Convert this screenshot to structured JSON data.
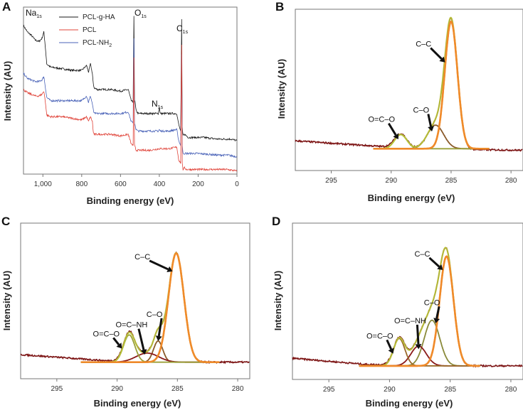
{
  "figure": {
    "colors": {
      "PCL-g-HA": "#1a1a1a",
      "PCL": "#e0443a",
      "PCL-NH2": "#4a63b8",
      "raw": "#7d1515",
      "envelope": "#b8c43a",
      "C-C": "#f08a2a",
      "C-O": "#8a5a2a",
      "C-O_D": "#8a8a3a",
      "O=C-O": "#9aa03a",
      "O=C-O_D": "#9a6a2a",
      "O=C-NH": "#8a1a1a",
      "arrow": "#111111"
    }
  },
  "chart_data": [
    {
      "panel": "A",
      "type": "line",
      "title": "",
      "xlabel": "Binding energy (eV)",
      "ylabel": "Intensity (AU)",
      "xlim": [
        1100,
        0
      ],
      "ylim": [
        0,
        100
      ],
      "x_ticks": [
        1000,
        800,
        600,
        400,
        200,
        0
      ],
      "x_tick_labels": [
        "1,000",
        "800",
        "600",
        "400",
        "200",
        "0"
      ],
      "legend": {
        "placement": "top-left",
        "entries": [
          "PCL-g-HA",
          "PCL",
          "PCL-NH2"
        ],
        "entry_labels": [
          "PCL-g-HA",
          "PCL",
          "PCL-NH"
        ],
        "entry_subscripts": [
          "",
          "",
          "2"
        ]
      },
      "peak_labels": [
        {
          "main": "Na",
          "sub": "1s",
          "x": 1071
        },
        {
          "main": "O",
          "sub": "1s",
          "x": 531
        },
        {
          "main": "N",
          "sub": "1s",
          "x": 400
        },
        {
          "main": "C",
          "sub": "1s",
          "x": 285
        }
      ],
      "series": [
        {
          "name": "PCL-g-HA",
          "x": [
            1100,
            1080,
            1060,
            1040,
            1020,
            1005,
            995,
            990,
            980,
            960,
            900,
            850,
            800,
            775,
            765,
            755,
            745,
            740,
            735,
            720,
            650,
            600,
            560,
            545,
            535,
            531,
            528,
            525,
            520,
            510,
            450,
            405,
            400,
            395,
            350,
            310,
            300,
            290,
            285,
            282,
            278,
            270,
            260,
            250,
            200,
            170,
            100,
            50,
            30,
            0
          ],
          "y": [
            92,
            88,
            86,
            83,
            82,
            84,
            88,
            82,
            68,
            66,
            65,
            64,
            64,
            67,
            63,
            68,
            62,
            55,
            53,
            52,
            52,
            51,
            52,
            45,
            44,
            98,
            46,
            44,
            39,
            37,
            37,
            37,
            41,
            37,
            37,
            37,
            30,
            26,
            96,
            28,
            23,
            24,
            23,
            22,
            22,
            22,
            21,
            21,
            21,
            20
          ]
        },
        {
          "name": "PCL-NH2",
          "x": [
            1100,
            1080,
            1060,
            1040,
            1020,
            1005,
            995,
            990,
            980,
            960,
            900,
            850,
            800,
            775,
            765,
            755,
            745,
            740,
            735,
            720,
            650,
            600,
            560,
            545,
            535,
            531,
            528,
            525,
            520,
            510,
            450,
            405,
            400,
            395,
            350,
            310,
            300,
            290,
            285,
            282,
            278,
            270,
            260,
            250,
            200,
            100,
            50,
            0
          ],
          "y": [
            62,
            59,
            58,
            57,
            57,
            58,
            60,
            56,
            47,
            45,
            45,
            45,
            45,
            48,
            44,
            48,
            43,
            39,
            37,
            37,
            37,
            37,
            38,
            32,
            31,
            84,
            31,
            30,
            27,
            26,
            26,
            26,
            27,
            26,
            26,
            27,
            20,
            17,
            74,
            17,
            12,
            12,
            12,
            12,
            12,
            11,
            11,
            10
          ]
        },
        {
          "name": "PCL",
          "x": [
            1100,
            1080,
            1060,
            1040,
            1020,
            1005,
            995,
            990,
            980,
            960,
            900,
            850,
            800,
            775,
            765,
            755,
            745,
            740,
            735,
            720,
            650,
            600,
            560,
            545,
            535,
            531,
            528,
            525,
            520,
            510,
            450,
            400,
            350,
            310,
            300,
            290,
            285,
            282,
            278,
            270,
            260,
            250,
            200,
            100,
            50,
            0
          ],
          "y": [
            52,
            50,
            49,
            48,
            48,
            49,
            51,
            47,
            36,
            35,
            35,
            34,
            33,
            35,
            32,
            35,
            32,
            25,
            24,
            24,
            24,
            23,
            24,
            18,
            17,
            72,
            17,
            16,
            14,
            14,
            14,
            15,
            15,
            16,
            8,
            6,
            80,
            6,
            2,
            3,
            2,
            2,
            2,
            2,
            2,
            1
          ]
        }
      ]
    },
    {
      "panel": "B",
      "type": "line",
      "title": "",
      "xlabel": "Binding energy (eV)",
      "ylabel": "Intensity (AU)",
      "xlim": [
        298,
        279
      ],
      "ylim": [
        0,
        100
      ],
      "x_ticks": [
        295,
        290,
        285,
        280
      ],
      "x_tick_labels": [
        "295",
        "290",
        "285",
        "280"
      ],
      "baseline": 13,
      "raw_baseline": [
        [
          298,
          18
        ],
        [
          290,
          14
        ],
        [
          288,
          13
        ],
        [
          279,
          12
        ]
      ],
      "components": [
        {
          "name": "C-C",
          "center": 285.0,
          "height": 81,
          "fwhm": 1.25,
          "color_key": "C-C",
          "label": "C–C"
        },
        {
          "name": "C-O",
          "center": 286.3,
          "height": 15,
          "fwhm": 1.6,
          "color_key": "C-O",
          "label": "C–O"
        },
        {
          "name": "O=C-O",
          "center": 289.2,
          "height": 9,
          "fwhm": 1.2,
          "color_key": "O=C-O",
          "label": "O=C–O"
        }
      ],
      "fit_range": [
        291.5,
        281.8
      ],
      "annotations": [
        {
          "label": "C–C",
          "text_x": 287.3,
          "text_y": 78,
          "arrow_to": [
            285.5,
            68
          ]
        },
        {
          "label": "C–O",
          "text_x": 287.5,
          "text_y": 36,
          "arrow_to": [
            286.6,
            24
          ]
        },
        {
          "label": "O=C–O",
          "text_x": 290.8,
          "text_y": 30,
          "arrow_to": [
            289.4,
            19
          ]
        }
      ]
    },
    {
      "panel": "C",
      "type": "line",
      "title": "",
      "xlabel": "Binding energy (eV)",
      "ylabel": "Intensity (AU)",
      "xlim": [
        298,
        279
      ],
      "ylim": [
        0,
        100
      ],
      "x_ticks": [
        295,
        290,
        285,
        280
      ],
      "x_tick_labels": [
        "295",
        "290",
        "285",
        "280"
      ],
      "baseline": 10,
      "raw_baseline": [
        [
          298,
          15
        ],
        [
          291,
          11
        ],
        [
          286,
          10
        ],
        [
          279,
          10
        ]
      ],
      "components": [
        {
          "name": "C-C",
          "center": 285.1,
          "height": 72,
          "fwhm": 1.5,
          "color_key": "C-C",
          "label": "C–C"
        },
        {
          "name": "C-O",
          "center": 286.6,
          "height": 14,
          "fwhm": 0.9,
          "color_key": "C-O",
          "label": "C–O"
        },
        {
          "name": "O=C-NH",
          "center": 287.5,
          "height": 6,
          "fwhm": 2.2,
          "color_key": "O=C-NH",
          "label": "O=C–NH"
        },
        {
          "name": "O=C-O",
          "center": 289.0,
          "height": 18,
          "fwhm": 1.1,
          "color_key": "O=C-O",
          "label": "O=C–O"
        }
      ],
      "fit_range": [
        293,
        281.5
      ],
      "annotations": [
        {
          "label": "C–C",
          "text_x": 287.9,
          "text_y": 78,
          "arrow_to": [
            285.4,
            70
          ]
        },
        {
          "label": "O=C–NH",
          "text_x": 288.8,
          "text_y": 33,
          "arrow_to": [
            287.7,
            15
          ]
        },
        {
          "label": "C–O",
          "text_x": 286.9,
          "text_y": 40,
          "arrow_to": [
            286.6,
            24
          ]
        },
        {
          "label": "O=C–O",
          "text_x": 290.9,
          "text_y": 27,
          "arrow_to": [
            289.6,
            19
          ]
        }
      ]
    },
    {
      "panel": "D",
      "type": "line",
      "title": "",
      "xlabel": "Binding energy (eV)",
      "ylabel": "Intensity (AU)",
      "xlim": [
        298,
        279
      ],
      "ylim": [
        0,
        100
      ],
      "x_ticks": [
        295,
        290,
        285,
        280
      ],
      "x_tick_labels": [
        "295",
        "290",
        "285",
        "280"
      ],
      "baseline": 8,
      "raw_baseline": [
        [
          298,
          13
        ],
        [
          292,
          9
        ],
        [
          286,
          8
        ],
        [
          279,
          8
        ]
      ],
      "components": [
        {
          "name": "C-C",
          "center": 285.3,
          "height": 72,
          "fwhm": 1.35,
          "color_key": "C-C",
          "label": "C–C"
        },
        {
          "name": "C-O",
          "center": 286.5,
          "height": 30,
          "fwhm": 1.5,
          "color_key": "C-O_D",
          "label": "C–O"
        },
        {
          "name": "O=C-NH",
          "center": 287.6,
          "height": 13,
          "fwhm": 1.5,
          "color_key": "O=C-NH",
          "label": "O=C–NH"
        },
        {
          "name": "O=C-O",
          "center": 289.2,
          "height": 18,
          "fwhm": 1.1,
          "color_key": "O=C-O_D",
          "label": "O=C–O"
        }
      ],
      "fit_range": [
        292.5,
        282.5
      ],
      "annotations": [
        {
          "label": "C–C",
          "text_x": 287.3,
          "text_y": 80,
          "arrow_to": [
            285.6,
            71
          ]
        },
        {
          "label": "C–O",
          "text_x": 286.5,
          "text_y": 48,
          "arrow_to": [
            286.2,
            36
          ]
        },
        {
          "label": "O=C–NH",
          "text_x": 288.3,
          "text_y": 36,
          "arrow_to": [
            287.6,
            19
          ]
        },
        {
          "label": "O=C–O",
          "text_x": 290.8,
          "text_y": 26,
          "arrow_to": [
            289.7,
            16
          ]
        }
      ]
    }
  ]
}
